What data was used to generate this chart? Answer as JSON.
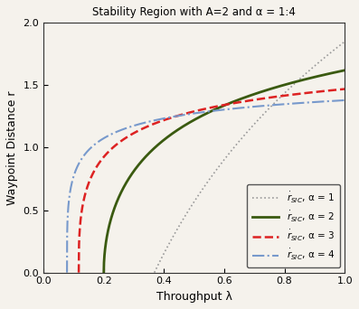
{
  "title": "Stability Region with A=2 and α = 1:4",
  "xlabel": "Throughput λ",
  "ylabel": "Waypoint Distance r",
  "xlim": [
    0,
    1.0
  ],
  "ylim": [
    0,
    2.0
  ],
  "A": 2,
  "alphas": [
    1,
    2,
    3,
    4
  ],
  "lmin": [
    0.368,
    0.2,
    0.117,
    0.078
  ],
  "scales": [
    1.85,
    1.62,
    1.47,
    1.38
  ],
  "colors": [
    "#999999",
    "#3a5a10",
    "#dd2222",
    "#7799cc"
  ],
  "linestyles": [
    "dotted",
    "solid",
    "dashed",
    "dashdot"
  ],
  "linewidths": [
    1.2,
    2.0,
    1.8,
    1.5
  ],
  "legend_labels": [
    "$\\dot{r}_{SIC}$, α = 1",
    "$\\dot{r}_{SIC}$, α = 2",
    "$\\dot{r}_{SIC}$, α = 3",
    "$\\dot{r}_{SIC}$, α = 4"
  ],
  "xticks": [
    0,
    0.2,
    0.4,
    0.6,
    0.8,
    1.0
  ],
  "yticks": [
    0,
    0.5,
    1.0,
    1.5,
    2.0
  ],
  "title_fontsize": 8.5,
  "label_fontsize": 9,
  "tick_fontsize": 8,
  "legend_fontsize": 7.5,
  "bg_color": "#f5f2ec"
}
